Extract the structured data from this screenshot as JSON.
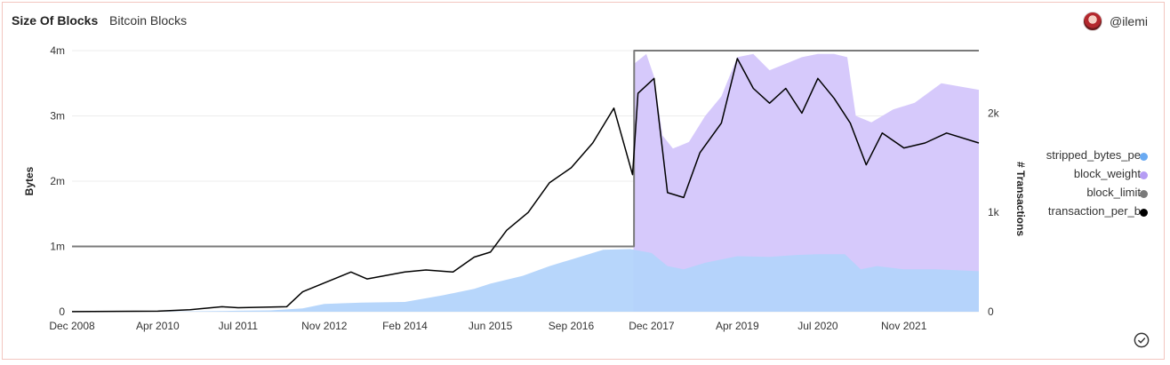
{
  "header": {
    "title": "Size Of Blocks",
    "subtitle": "Bitcoin Blocks",
    "user": "@ilemi"
  },
  "icons": {
    "avatar": "user-avatar-icon",
    "check": "check-circle-icon"
  },
  "colors": {
    "stripped": "#b3d4fb",
    "weight": "#d6c9fb",
    "limit": "#7a7a7a",
    "transactions": "#000000",
    "dot_stripped": "#6aaaf2",
    "dot_weight": "#b59cf4",
    "dot_limit": "#7a7a7a",
    "dot_tx": "#000000"
  },
  "legend": [
    {
      "label": "stripped_bytes_pe",
      "color_key": "dot_stripped"
    },
    {
      "label": "block_weight",
      "color_key": "dot_weight"
    },
    {
      "label": "block_limit",
      "color_key": "dot_limit"
    },
    {
      "label": "transaction_per_b",
      "color_key": "dot_tx"
    }
  ],
  "chart_data": {
    "type": "area",
    "ylabel": "Bytes",
    "y2label": "# Transactions",
    "ylim": [
      0,
      4000000
    ],
    "y2lim": [
      0,
      2630
    ],
    "yticks": [
      {
        "v": 0,
        "label": "0"
      },
      {
        "v": 1000000,
        "label": "1m"
      },
      {
        "v": 2000000,
        "label": "2m"
      },
      {
        "v": 3000000,
        "label": "3m"
      },
      {
        "v": 4000000,
        "label": "4m"
      }
    ],
    "y2ticks": [
      {
        "v": 0,
        "label": "0"
      },
      {
        "v": 1000,
        "label": "1k"
      },
      {
        "v": 2000,
        "label": "2k"
      }
    ],
    "xlim": [
      "2008-12-01",
      "2022-12-31"
    ],
    "xticks": [
      {
        "date": "2008-12-01",
        "label": "Dec 2008"
      },
      {
        "date": "2010-04-01",
        "label": "Apr 2010"
      },
      {
        "date": "2011-07-01",
        "label": "Jul 2011"
      },
      {
        "date": "2012-11-01",
        "label": "Nov 2012"
      },
      {
        "date": "2014-02-01",
        "label": "Feb 2014"
      },
      {
        "date": "2015-06-01",
        "label": "Jun 2015"
      },
      {
        "date": "2016-09-01",
        "label": "Sep 2016"
      },
      {
        "date": "2017-12-01",
        "label": "Dec 2017"
      },
      {
        "date": "2019-04-01",
        "label": "Apr 2019"
      },
      {
        "date": "2020-07-01",
        "label": "Jul 2020"
      },
      {
        "date": "2021-11-01",
        "label": "Nov 2021"
      }
    ],
    "grid": true,
    "legend_position": "right",
    "series": [
      {
        "name": "stripped_bytes_pe",
        "axis": "left",
        "style": "area",
        "points": [
          [
            "2008-12-01",
            0
          ],
          [
            "2010-04-01",
            2000
          ],
          [
            "2011-01-01",
            8000
          ],
          [
            "2011-07-01",
            15000
          ],
          [
            "2012-01-01",
            20000
          ],
          [
            "2012-07-01",
            50000
          ],
          [
            "2012-11-01",
            120000
          ],
          [
            "2013-06-01",
            140000
          ],
          [
            "2014-02-01",
            150000
          ],
          [
            "2014-09-01",
            250000
          ],
          [
            "2015-03-01",
            350000
          ],
          [
            "2015-06-01",
            430000
          ],
          [
            "2015-12-01",
            550000
          ],
          [
            "2016-05-01",
            700000
          ],
          [
            "2016-09-01",
            800000
          ],
          [
            "2017-03-01",
            950000
          ],
          [
            "2017-08-01",
            960000
          ],
          [
            "2017-12-01",
            900000
          ],
          [
            "2018-03-01",
            700000
          ],
          [
            "2018-06-01",
            650000
          ],
          [
            "2018-10-01",
            750000
          ],
          [
            "2019-04-01",
            850000
          ],
          [
            "2019-10-01",
            840000
          ],
          [
            "2020-03-01",
            870000
          ],
          [
            "2020-07-01",
            880000
          ],
          [
            "2020-12-01",
            880000
          ],
          [
            "2021-03-01",
            650000
          ],
          [
            "2021-06-01",
            700000
          ],
          [
            "2021-11-01",
            650000
          ],
          [
            "2022-05-01",
            650000
          ],
          [
            "2022-12-31",
            620000
          ]
        ]
      },
      {
        "name": "block_weight",
        "axis": "left",
        "style": "area",
        "points": [
          [
            "2017-08-20",
            900000
          ],
          [
            "2017-08-24",
            3800000
          ],
          [
            "2017-11-01",
            3950000
          ],
          [
            "2017-12-15",
            3600000
          ],
          [
            "2018-02-01",
            2700000
          ],
          [
            "2018-04-01",
            2500000
          ],
          [
            "2018-07-01",
            2600000
          ],
          [
            "2018-10-01",
            3000000
          ],
          [
            "2019-01-01",
            3300000
          ],
          [
            "2019-04-01",
            3900000
          ],
          [
            "2019-07-01",
            3950000
          ],
          [
            "2019-10-01",
            3700000
          ],
          [
            "2020-01-01",
            3800000
          ],
          [
            "2020-04-01",
            3900000
          ],
          [
            "2020-07-01",
            3950000
          ],
          [
            "2020-10-01",
            3950000
          ],
          [
            "2020-12-15",
            3900000
          ],
          [
            "2021-02-01",
            3000000
          ],
          [
            "2021-05-01",
            2900000
          ],
          [
            "2021-09-01",
            3100000
          ],
          [
            "2022-01-01",
            3200000
          ],
          [
            "2022-06-01",
            3500000
          ],
          [
            "2022-12-31",
            3400000
          ]
        ]
      },
      {
        "name": "block_limit",
        "axis": "left",
        "style": "line",
        "points": [
          [
            "2008-12-01",
            1000000
          ],
          [
            "2017-08-23",
            1000000
          ],
          [
            "2017-08-24",
            4000000
          ],
          [
            "2022-12-31",
            4000000
          ]
        ]
      },
      {
        "name": "transaction_per_b",
        "axis": "right",
        "style": "line",
        "points": [
          [
            "2008-12-01",
            1
          ],
          [
            "2010-04-01",
            5
          ],
          [
            "2010-10-01",
            20
          ],
          [
            "2011-04-01",
            50
          ],
          [
            "2011-07-01",
            40
          ],
          [
            "2012-04-01",
            50
          ],
          [
            "2012-07-01",
            200
          ],
          [
            "2012-11-01",
            290
          ],
          [
            "2013-04-01",
            400
          ],
          [
            "2013-07-01",
            330
          ],
          [
            "2014-02-01",
            400
          ],
          [
            "2014-06-01",
            420
          ],
          [
            "2014-11-01",
            400
          ],
          [
            "2015-03-01",
            550
          ],
          [
            "2015-06-01",
            600
          ],
          [
            "2015-09-01",
            820
          ],
          [
            "2016-01-01",
            1000
          ],
          [
            "2016-05-01",
            1300
          ],
          [
            "2016-09-01",
            1450
          ],
          [
            "2017-01-01",
            1700
          ],
          [
            "2017-05-01",
            2050
          ],
          [
            "2017-08-15",
            1380
          ],
          [
            "2017-09-15",
            2200
          ],
          [
            "2017-12-15",
            2350
          ],
          [
            "2018-03-01",
            1200
          ],
          [
            "2018-06-01",
            1150
          ],
          [
            "2018-09-01",
            1600
          ],
          [
            "2019-01-01",
            1900
          ],
          [
            "2019-04-01",
            2550
          ],
          [
            "2019-07-01",
            2250
          ],
          [
            "2019-10-01",
            2100
          ],
          [
            "2020-01-01",
            2250
          ],
          [
            "2020-04-01",
            2000
          ],
          [
            "2020-07-01",
            2350
          ],
          [
            "2020-10-01",
            2150
          ],
          [
            "2021-01-01",
            1900
          ],
          [
            "2021-04-01",
            1480
          ],
          [
            "2021-07-01",
            1800
          ],
          [
            "2021-11-01",
            1650
          ],
          [
            "2022-03-01",
            1700
          ],
          [
            "2022-07-01",
            1800
          ],
          [
            "2022-12-31",
            1700
          ]
        ]
      }
    ]
  }
}
